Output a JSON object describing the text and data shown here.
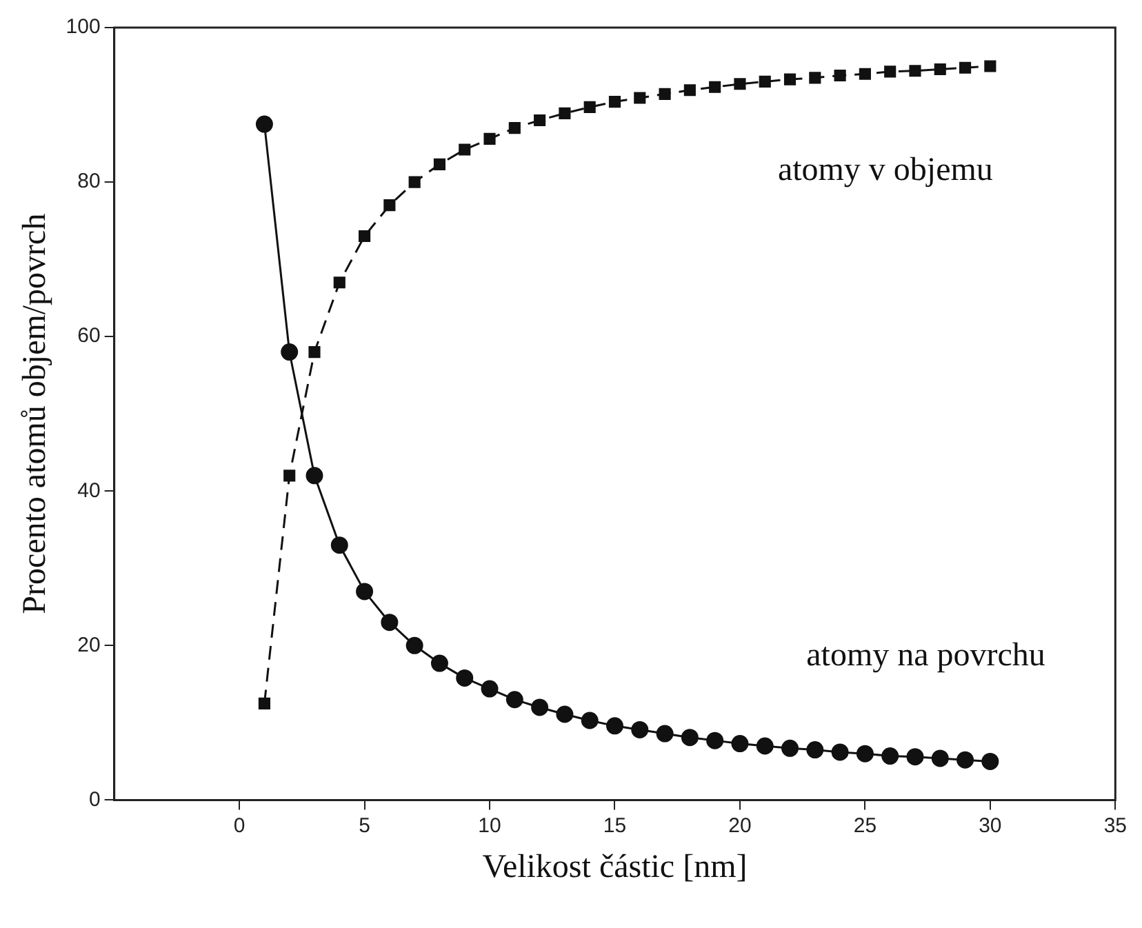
{
  "chart_data": {
    "type": "line",
    "xlabel": "Velikost částic [nm]",
    "ylabel": "Procento atomů objem/povrch",
    "x": [
      1,
      2,
      3,
      4,
      5,
      6,
      7,
      8,
      9,
      10,
      11,
      12,
      13,
      14,
      15,
      16,
      17,
      18,
      19,
      20,
      21,
      22,
      23,
      24,
      25,
      26,
      27,
      28,
      29,
      30
    ],
    "series": [
      {
        "name": "atomy v objemu",
        "color": "#111111",
        "marker": "square",
        "line_style": "dashed",
        "values": [
          12.5,
          42,
          58,
          67,
          73,
          77,
          80,
          82.3,
          84.2,
          85.6,
          87,
          88,
          88.9,
          89.7,
          90.4,
          90.9,
          91.4,
          91.9,
          92.3,
          92.7,
          93,
          93.3,
          93.5,
          93.8,
          94,
          94.3,
          94.4,
          94.6,
          94.8,
          95
        ]
      },
      {
        "name": "atomy na povrchu",
        "color": "#111111",
        "marker": "circle",
        "line_style": "solid",
        "values": [
          87.5,
          58,
          42,
          33,
          27,
          23,
          20,
          17.7,
          15.8,
          14.4,
          13,
          12,
          11.1,
          10.3,
          9.6,
          9.1,
          8.6,
          8.1,
          7.7,
          7.3,
          7,
          6.7,
          6.5,
          6.2,
          6,
          5.7,
          5.6,
          5.4,
          5.2,
          5
        ]
      }
    ],
    "xlim": [
      -5,
      35
    ],
    "xticks": [
      0,
      5,
      10,
      15,
      20,
      25,
      30,
      35
    ],
    "ylim": [
      0,
      100
    ],
    "yticks": [
      0,
      20,
      40,
      60,
      80,
      100
    ],
    "grid": false,
    "legend": false
  }
}
